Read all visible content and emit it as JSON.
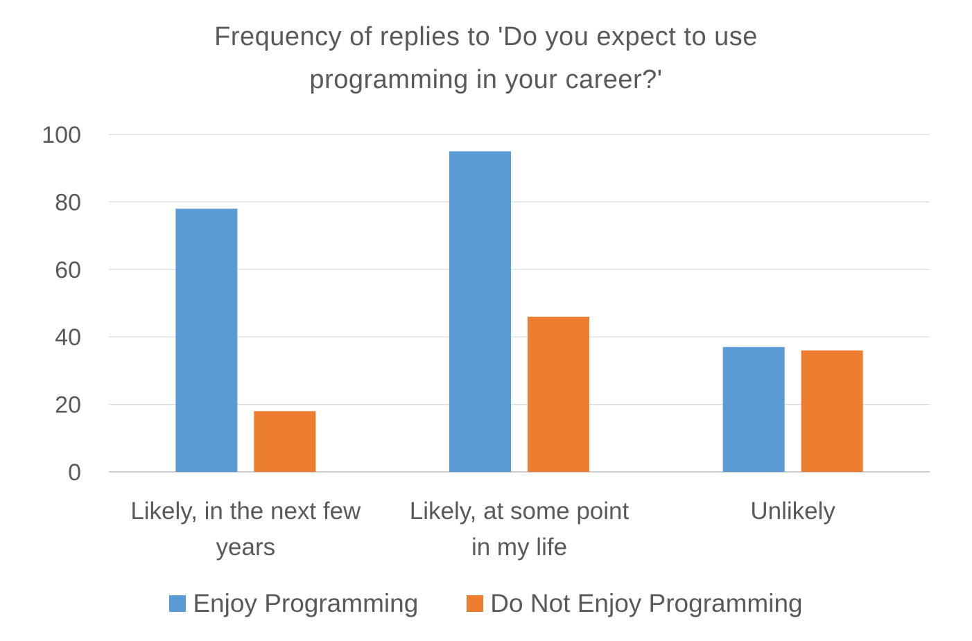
{
  "chart_data": {
    "type": "bar",
    "title_lines": [
      "Frequency of replies to 'Do you expect to use",
      "programming in your career?'"
    ],
    "categories": [
      [
        "Likely, in the next few",
        "years"
      ],
      [
        "Likely, at some point",
        "in my life"
      ],
      [
        "Unlikely"
      ]
    ],
    "series": [
      {
        "name": "Enjoy Programming",
        "color": "#5B9BD5",
        "values": [
          78,
          95,
          37
        ]
      },
      {
        "name": "Do Not Enjoy Programming",
        "color": "#ED7D31",
        "values": [
          18,
          46,
          36
        ]
      }
    ],
    "yticks": [
      "0",
      "20",
      "40",
      "60",
      "80",
      "100"
    ],
    "ylim": [
      0,
      100
    ],
    "grid": true,
    "legend_position": "bottom",
    "xlabel": "",
    "ylabel": ""
  }
}
